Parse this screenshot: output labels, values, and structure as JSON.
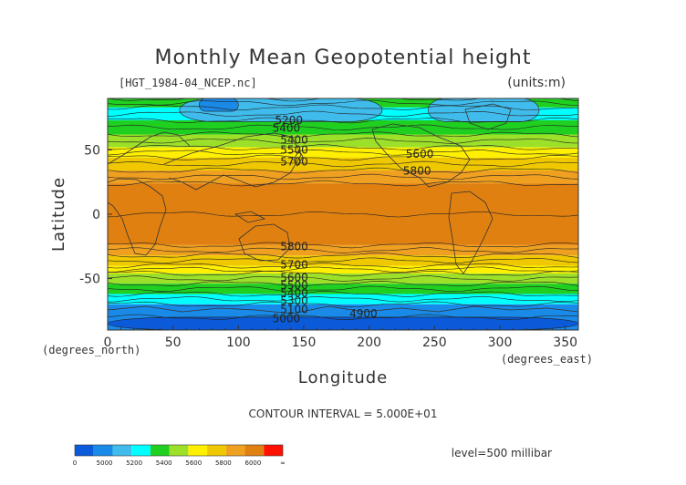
{
  "chart_data": {
    "type": "heatmap",
    "title": "Monthly Mean Geopotential height",
    "file_label": "[HGT_1984-04_NCEP.nc]",
    "units_label": "(units:m)",
    "xlabel": "Longitude",
    "ylabel": "Latitude",
    "x_unit_label": "(degrees_east)",
    "y_unit_label": "(degrees_north)",
    "xlim": [
      0,
      360
    ],
    "ylim": [
      -90,
      90
    ],
    "x_ticks": [
      0,
      50,
      100,
      150,
      200,
      250,
      300,
      350
    ],
    "y_ticks": [
      -50,
      0,
      50
    ],
    "contour_interval_label": "CONTOUR INTERVAL = 5.000E+01",
    "level_label": "level=500 millibar",
    "contour_labels": [
      {
        "text": "5200",
        "lon": 128,
        "lat": 70
      },
      {
        "text": "5400",
        "lon": 126,
        "lat": 64
      },
      {
        "text": "5400",
        "lon": 132,
        "lat": 55
      },
      {
        "text": "5500",
        "lon": 132,
        "lat": 47
      },
      {
        "text": "5700",
        "lon": 132,
        "lat": 38
      },
      {
        "text": "5600",
        "lon": 228,
        "lat": 44
      },
      {
        "text": "5800",
        "lon": 226,
        "lat": 31
      },
      {
        "text": "5800",
        "lon": 132,
        "lat": -28
      },
      {
        "text": "5700",
        "lon": 132,
        "lat": -42
      },
      {
        "text": "5600",
        "lon": 132,
        "lat": -52
      },
      {
        "text": "5500",
        "lon": 132,
        "lat": -58
      },
      {
        "text": "5400",
        "lon": 132,
        "lat": -64
      },
      {
        "text": "5300",
        "lon": 132,
        "lat": -70
      },
      {
        "text": "5100",
        "lon": 132,
        "lat": -77
      },
      {
        "text": "5000",
        "lon": 126,
        "lat": -84
      },
      {
        "text": "4900",
        "lon": 185,
        "lat": -80
      }
    ],
    "lat_bands": [
      {
        "lat0": 90,
        "lat1": 83,
        "value": 5350
      },
      {
        "lat0": 83,
        "lat1": 73,
        "value": 5250
      },
      {
        "lat0": 73,
        "lat1": 62,
        "value": 5350
      },
      {
        "lat0": 62,
        "lat1": 52,
        "value": 5450
      },
      {
        "lat0": 52,
        "lat1": 44,
        "value": 5550
      },
      {
        "lat0": 44,
        "lat1": 34,
        "value": 5650
      },
      {
        "lat0": 34,
        "lat1": 24,
        "value": 5750
      },
      {
        "lat0": 24,
        "lat1": -24,
        "value": 5850
      },
      {
        "lat0": -24,
        "lat1": -32,
        "value": 5750
      },
      {
        "lat0": -32,
        "lat1": -40,
        "value": 5650
      },
      {
        "lat0": -40,
        "lat1": -46,
        "value": 5550
      },
      {
        "lat0": -46,
        "lat1": -54,
        "value": 5450
      },
      {
        "lat0": -54,
        "lat1": -62,
        "value": 5350
      },
      {
        "lat0": -62,
        "lat1": -70,
        "value": 5250
      },
      {
        "lat0": -70,
        "lat1": -90,
        "value": 5050
      }
    ],
    "low_regions": [
      {
        "lon0": 55,
        "lon1": 210,
        "lat0": 90,
        "lat1": 72,
        "value": 5150
      },
      {
        "lon0": 245,
        "lon1": 330,
        "lat0": 90,
        "lat1": 72,
        "value": 5150
      },
      {
        "lon0": 70,
        "lon1": 100,
        "lat0": 90,
        "lat1": 80,
        "value": 5050
      },
      {
        "lon0": 0,
        "lon1": 360,
        "lat0": -80,
        "lat1": -90,
        "value": 4950
      }
    ],
    "colorbar": {
      "tick_labels": [
        "0",
        "5000",
        "5200",
        "5400",
        "5600",
        "5800",
        "6000",
        "∞"
      ],
      "colors": [
        "#0a5ad9",
        "#1a8ae8",
        "#3fbcec",
        "#00ffff",
        "#20d020",
        "#9ce029",
        "#fff000",
        "#f0c800",
        "#f0a020",
        "#e08010",
        "#ff1000"
      ]
    }
  }
}
